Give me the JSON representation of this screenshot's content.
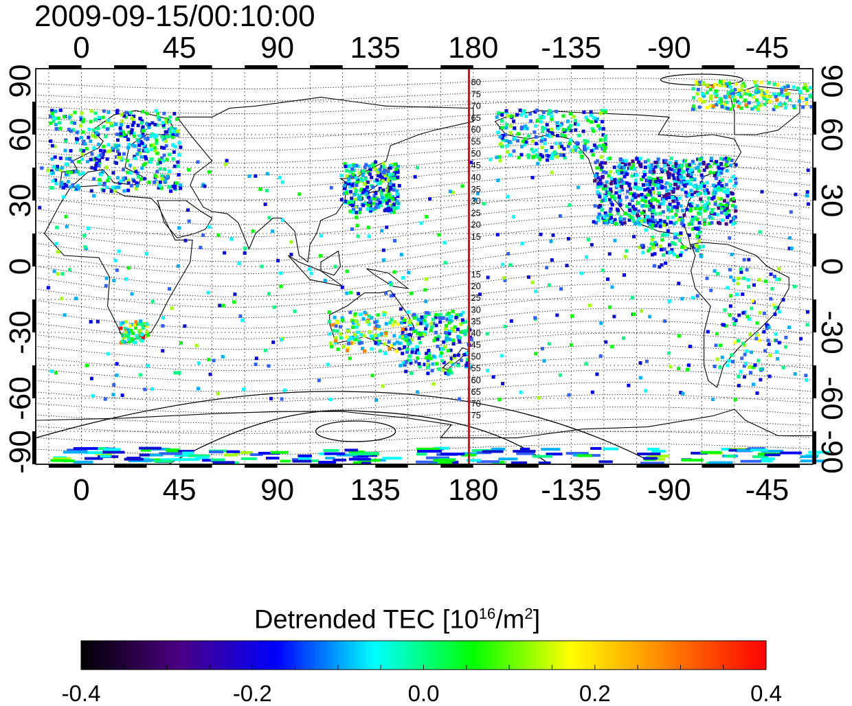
{
  "title": "2009-09-15/00:10:00",
  "map": {
    "lon_range": [
      -21,
      336
    ],
    "lat_range": [
      -90,
      90
    ],
    "x_ticks": [
      {
        "lon": 0,
        "label": "0"
      },
      {
        "lon": 45,
        "label": "45"
      },
      {
        "lon": 90,
        "label": "90"
      },
      {
        "lon": 135,
        "label": "135"
      },
      {
        "lon": 180,
        "label": "180"
      },
      {
        "lon": 225,
        "label": "-135"
      },
      {
        "lon": 270,
        "label": "-90"
      },
      {
        "lon": 315,
        "label": "-45"
      }
    ],
    "y_ticks": [
      {
        "lat": 90,
        "label": "90"
      },
      {
        "lat": 60,
        "label": "60"
      },
      {
        "lat": 30,
        "label": "30"
      },
      {
        "lat": 0,
        "label": "0"
      },
      {
        "lat": -30,
        "label": "-30"
      },
      {
        "lat": -60,
        "label": "-60"
      },
      {
        "lat": -90,
        "label": "-90"
      }
    ],
    "meridian_line": {
      "lon": 178,
      "color": "#ff0000"
    },
    "contour_labels_north": [
      "80",
      "75",
      "70",
      "65",
      "60",
      "55",
      "50",
      "45",
      "40",
      "35",
      "30",
      "25",
      "20",
      "15"
    ],
    "contour_labels_south": [
      "15",
      "20",
      "25",
      "30",
      "35",
      "40",
      "45",
      "50",
      "55",
      "60",
      "65",
      "70",
      "75"
    ],
    "grid": "dotted"
  },
  "colorbar": {
    "title_prefix": "Detrended TEC  [10",
    "title_sup1": "16",
    "title_mid": "/m",
    "title_sup2": "2",
    "title_suffix": "]",
    "min": -0.4,
    "max": 0.4,
    "tick_labels": [
      "-0.4",
      "-0.2",
      "0.0",
      "0.2",
      "0.4"
    ],
    "colors": [
      "#000000",
      "#4b0082",
      "#0000ff",
      "#00ffff",
      "#00ff00",
      "#ffff00",
      "#ff8000",
      "#ff0000"
    ]
  }
}
